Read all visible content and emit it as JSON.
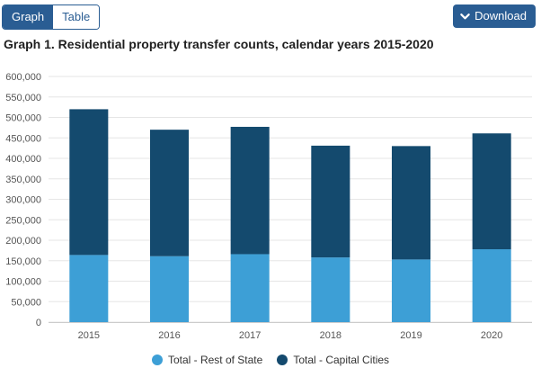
{
  "toolbar": {
    "graph_label": "Graph",
    "table_label": "Table",
    "download_label": "Download"
  },
  "chart_data": {
    "type": "bar",
    "stacked": true,
    "title": "Graph 1. Residential property transfer counts, calendar years 2015-2020",
    "categories": [
      "2015",
      "2016",
      "2017",
      "2018",
      "2019",
      "2020"
    ],
    "series": [
      {
        "name": "Total - Rest of State",
        "color": "#3d9fd6",
        "values": [
          164000,
          161000,
          166000,
          158000,
          153000,
          178000
        ]
      },
      {
        "name": "Total - Capital Cities",
        "color": "#144a6e",
        "values": [
          356000,
          309000,
          311000,
          273000,
          277000,
          283000
        ]
      }
    ],
    "ylim": [
      0,
      600000
    ],
    "yticks": [
      "0",
      "50,000",
      "100,000",
      "150,000",
      "200,000",
      "250,000",
      "300,000",
      "350,000",
      "400,000",
      "450,000",
      "500,000",
      "550,000",
      "600,000"
    ],
    "grid": true,
    "legend_position": "bottom"
  }
}
